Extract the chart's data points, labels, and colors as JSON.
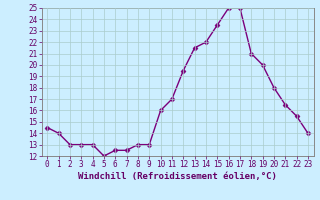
{
  "x": [
    0,
    1,
    2,
    3,
    4,
    5,
    6,
    7,
    8,
    9,
    10,
    11,
    12,
    13,
    14,
    15,
    16,
    17,
    18,
    19,
    20,
    21,
    22,
    23
  ],
  "y": [
    14.5,
    14.0,
    13.0,
    13.0,
    13.0,
    12.0,
    12.5,
    12.5,
    13.0,
    13.0,
    16.0,
    17.0,
    19.5,
    21.5,
    22.0,
    23.5,
    25.0,
    25.0,
    21.0,
    20.0,
    18.0,
    16.5,
    15.5,
    14.0
  ],
  "line_color": "#7b007b",
  "marker": "D",
  "marker_size": 2.5,
  "bg_color": "#cceeff",
  "grid_color": "#aacccc",
  "xlabel": "Windchill (Refroidissement éolien,°C)",
  "ylim": [
    12,
    25
  ],
  "xlim": [
    -0.5,
    23.5
  ],
  "yticks": [
    12,
    13,
    14,
    15,
    16,
    17,
    18,
    19,
    20,
    21,
    22,
    23,
    24,
    25
  ],
  "xticks": [
    0,
    1,
    2,
    3,
    4,
    5,
    6,
    7,
    8,
    9,
    10,
    11,
    12,
    13,
    14,
    15,
    16,
    17,
    18,
    19,
    20,
    21,
    22,
    23
  ],
  "tick_fontsize": 5.5,
  "xlabel_fontsize": 6.5,
  "line_width": 1.0
}
